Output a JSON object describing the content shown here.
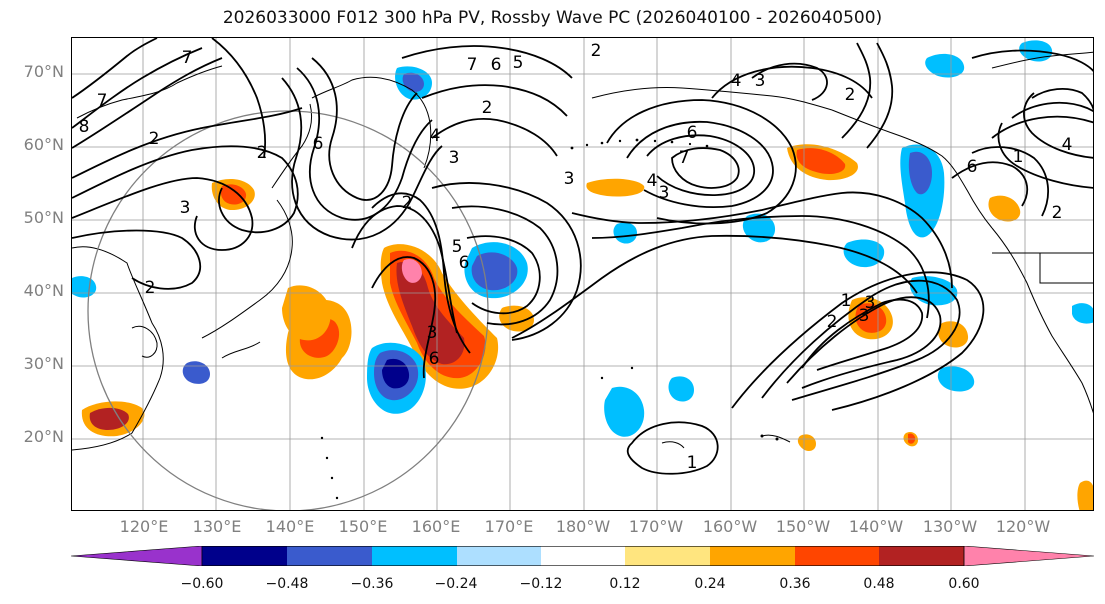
{
  "title": "2026033000 F012 300 hPa PV, Rossby Wave PC (2026040100 - 2026040500)",
  "lat_labels": [
    "70°N",
    "60°N",
    "50°N",
    "40°N",
    "30°N",
    "20°N"
  ],
  "lon_labels": [
    "120°E",
    "130°E",
    "140°E",
    "150°E",
    "160°E",
    "170°E",
    "180°W",
    "170°W",
    "160°W",
    "150°W",
    "140°W",
    "130°W",
    "120°W"
  ],
  "colorbar": {
    "ticks": [
      "−0.60",
      "−0.48",
      "−0.36",
      "−0.24",
      "−0.12",
      "0.12",
      "0.24",
      "0.36",
      "0.48",
      "0.60"
    ],
    "colors": [
      "#9932CC",
      "#00008B",
      "#3A5BCD",
      "#00BFFF",
      "#ADDFFF",
      "#FFFFFF",
      "#FFE57F",
      "#FFA500",
      "#FF4500",
      "#B22222",
      "#FF82AB"
    ]
  },
  "contour_labels": [
    "7",
    "8",
    "7",
    "2",
    "3",
    "6",
    "2",
    "2",
    "7",
    "6",
    "5",
    "2",
    "4",
    "3",
    "2",
    "6",
    "3",
    "6",
    "3",
    "4",
    "2",
    "6",
    "7",
    "4",
    "3",
    "5",
    "6",
    "3",
    "2",
    "2",
    "1",
    "3",
    "2",
    "1",
    "4",
    "3",
    "1"
  ],
  "colors": {
    "land": "#000000",
    "grid": "#9a9a9a",
    "circle": "#808080",
    "axis_label": "#808080"
  }
}
